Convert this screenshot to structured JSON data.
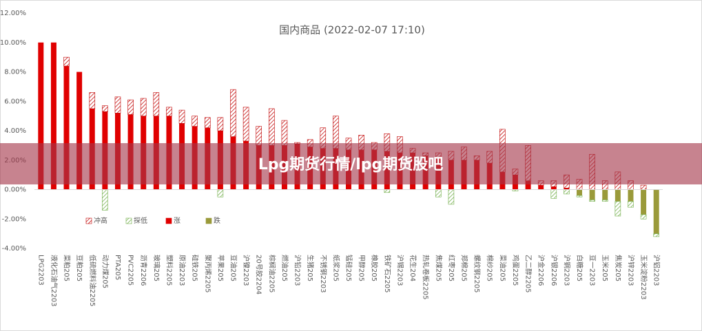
{
  "chart_data": {
    "type": "bar",
    "title": "国内商品 (2022-02-07 17:10)",
    "categories": [
      "LPG2203",
      "液化石油气2203",
      "菜粕205",
      "豆粕205",
      "低硫燃料油2205",
      "动力煤205",
      "PTA205",
      "PVC2205",
      "沥青2206",
      "玻璃205",
      "塑料2205",
      "原油2203",
      "硅铁205",
      "聚丙烯2205",
      "苹果205",
      "豆油205",
      "沪镍2203",
      "20号胶2204",
      "棕榈油2205",
      "燃油205",
      "沪铅2203",
      "生猪205",
      "不锈钢2203",
      "纸浆205",
      "锰硅205",
      "甲醇205",
      "橡胶205",
      "铁矿石2205",
      "沪锡2203",
      "花生204",
      "热轧卷板2205",
      "焦煤205",
      "红枣205",
      "郑棉205",
      "螺纹钢2205",
      "棉纱205",
      "菜油205",
      "鸡蛋2205",
      "乙二醇2205",
      "沪金2206",
      "沪银2206",
      "沪铜2203",
      "白糖205",
      "豆一2203",
      "玉米205",
      "焦炭205",
      "沪锌2203",
      "玉米淀粉2203",
      "沪铝2203"
    ],
    "series": [
      {
        "name": "冲高",
        "color": "#c00000",
        "pattern": "hatch",
        "stack": "up",
        "values": [
          0,
          0,
          0.6,
          0,
          1.1,
          0.4,
          1.1,
          1.0,
          1.2,
          1.6,
          0.6,
          0.9,
          0.7,
          0.7,
          0.9,
          3.2,
          2.3,
          1.3,
          2.5,
          1.7,
          0.1,
          0.5,
          1.4,
          2.2,
          0.8,
          1.0,
          0.5,
          1.2,
          1.1,
          0.3,
          0.2,
          0.3,
          0.6,
          0.9,
          0.3,
          0.8,
          2.9,
          0.4,
          2.4,
          0.3,
          0.4,
          0.9,
          0.7,
          2.4,
          0.6,
          1.2,
          0.6,
          0.3,
          0
        ]
      },
      {
        "name": "探低",
        "color": "#70ad47",
        "pattern": "hatch",
        "stack": "down",
        "values": [
          0,
          0,
          0,
          0,
          0,
          -1.4,
          0,
          0,
          0,
          0,
          0,
          0,
          0,
          0,
          -0.5,
          0,
          0,
          0,
          0,
          0,
          0,
          0,
          0,
          0,
          0,
          0,
          0,
          -0.2,
          0,
          0,
          0,
          -0.5,
          -1.0,
          0,
          0,
          0,
          0,
          -0.1,
          0,
          0,
          -0.6,
          -0.3,
          -0.1,
          -0.1,
          -0.1,
          -1.0,
          -0.4,
          -0.3,
          -0.2
        ]
      },
      {
        "name": "涨",
        "color": "#e00000",
        "pattern": "solid",
        "stack": "up",
        "values": [
          10,
          10,
          8.4,
          8.0,
          5.5,
          5.3,
          5.2,
          5.1,
          5.0,
          5.0,
          5.0,
          4.5,
          4.3,
          4.2,
          4.0,
          3.6,
          3.3,
          3.0,
          3.0,
          3.0,
          3.1,
          2.9,
          2.8,
          2.8,
          2.7,
          2.7,
          2.7,
          2.6,
          2.5,
          2.5,
          2.3,
          2.2,
          2.0,
          2.0,
          2.0,
          1.8,
          1.2,
          1.0,
          0.6,
          0.3,
          0.2,
          0.1,
          0,
          0,
          0,
          0,
          0,
          0,
          0
        ]
      },
      {
        "name": "跌",
        "color": "#9a9a3a",
        "pattern": "solid",
        "stack": "down",
        "values": [
          0,
          0,
          0,
          0,
          0,
          0,
          0,
          0,
          0,
          0,
          0,
          0,
          0,
          0,
          0,
          0,
          0,
          0,
          0,
          0,
          0,
          0,
          0,
          0,
          0,
          0,
          0,
          0,
          0,
          0,
          0,
          0,
          0,
          0,
          0,
          0,
          0,
          0,
          0,
          0,
          0,
          0,
          -0.4,
          -0.7,
          -0.7,
          -0.8,
          -0.8,
          -1.7,
          -3.0
        ]
      }
    ],
    "ylim": [
      -4,
      12
    ],
    "yticks": [
      {
        "value": -4,
        "label": "-4.00%"
      },
      {
        "value": -2,
        "label": "-2.00%"
      },
      {
        "value": 0,
        "label": "0.00%"
      },
      {
        "value": 2,
        "label": "2.00%"
      },
      {
        "value": 4,
        "label": "4.00%"
      },
      {
        "value": 6,
        "label": "6.00%"
      },
      {
        "value": 8,
        "label": "8.00%"
      },
      {
        "value": 10,
        "label": "10.00%"
      },
      {
        "value": 12,
        "label": "12.00%"
      }
    ],
    "grid": false
  },
  "banner": "Lpg期货行情/lpg期货股吧"
}
